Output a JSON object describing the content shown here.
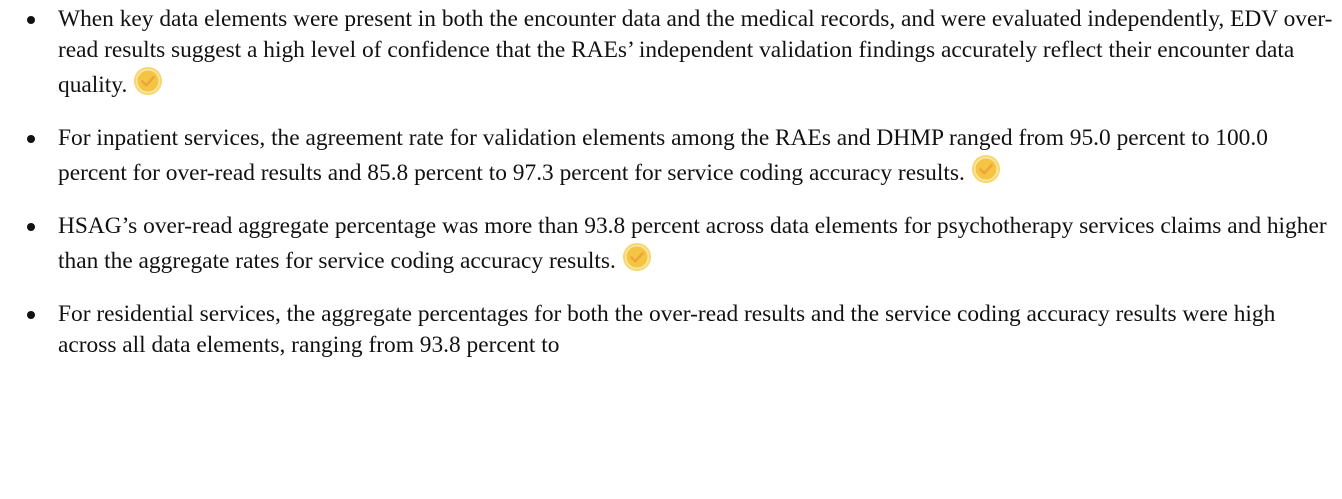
{
  "bullets": [
    {
      "text": "When key data elements were present in both the encounter data and the medical records, and were evaluated independently, EDV over-read results suggest a high level of confidence that the RAEs’ independent validation findings accurately reflect their encounter data quality."
    },
    {
      "text": "For inpatient services, the agreement rate for validation elements among the RAEs and DHMP ranged from 95.0 percent to 100.0 percent for over-read results and 85.8 percent to 97.3 percent for service coding accuracy results."
    },
    {
      "text": "HSAG’s over-read aggregate percentage was more than 93.8 percent across data elements for psychotherapy services claims and higher than the aggregate rates for service coding accuracy results."
    },
    {
      "text": "For residential services, the aggregate percentages for both the over-read results and the service coding accuracy results were high across all data elements, ranging from 93.8 percent to"
    }
  ]
}
